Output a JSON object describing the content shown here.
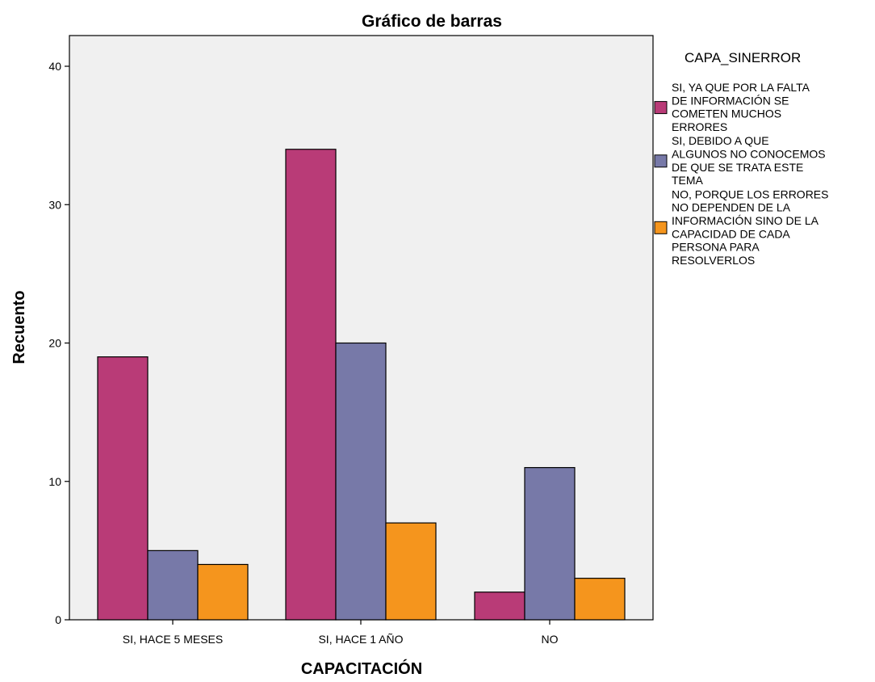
{
  "chart_data": {
    "type": "bar",
    "title": "Gráfico de barras",
    "xlabel": "CAPACITACIÓN",
    "ylabel": "Recuento",
    "ylim": [
      0,
      42
    ],
    "yticks": [
      0,
      10,
      20,
      30,
      40
    ],
    "grid": false,
    "categories": [
      "SI, HACE 5 MESES",
      "SI, HACE 1 AÑO",
      "NO"
    ],
    "legend": {
      "title": "CAPA_SINERROR",
      "placement": "right"
    },
    "series": [
      {
        "name": "SI, YA QUE POR LA FALTA DE INFORMACIÓN SE COMETEN MUCHOS ERRORES",
        "name_lines": [
          "SI, YA QUE POR LA FALTA",
          "DE INFORMACIÓN SE",
          "COMETEN MUCHOS",
          "ERRORES"
        ],
        "color": "#b93b77",
        "values": [
          19,
          34,
          2
        ]
      },
      {
        "name": "SI, DEBIDO A QUE ALGUNOS NO CONOCEMOS DE QUE SE TRATA ESTE TEMA",
        "name_lines": [
          "SI, DEBIDO A QUE",
          "ALGUNOS NO CONOCEMOS",
          "DE QUE SE TRATA ESTE",
          "TEMA"
        ],
        "color": "#7779a8",
        "values": [
          5,
          20,
          11
        ]
      },
      {
        "name": "NO, PORQUE LOS ERRORES NO DEPENDEN DE LA INFORMACIÓN SINO DE LA CAPACIDAD DE CADA PERSONA PARA RESOLVERLOS",
        "name_lines": [
          "NO, PORQUE LOS ERRORES",
          "NO DEPENDEN DE LA",
          "INFORMACIÓN SINO DE LA",
          "CAPACIDAD DE CADA",
          "PERSONA PARA",
          "RESOLVERLOS"
        ],
        "color": "#f5951d",
        "values": [
          4,
          7,
          3
        ]
      }
    ]
  },
  "colors": {
    "plot_background": "#f0f0f0",
    "bar_outline": "#000000"
  }
}
